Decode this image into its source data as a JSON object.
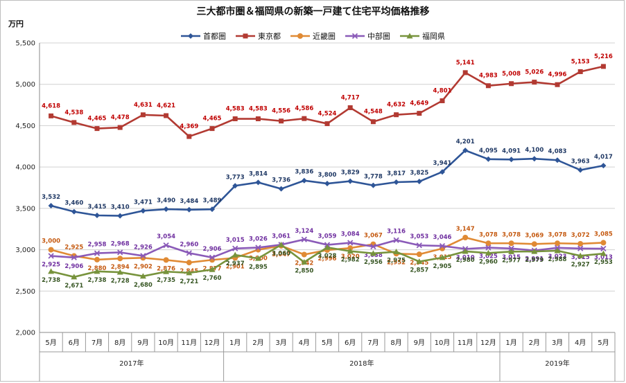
{
  "chart_data": {
    "type": "line",
    "title": "三大都市圏＆福岡県の新築一戸建て住宅平均価格推移",
    "ylabel": "万円",
    "ylim": [
      2000,
      5500
    ],
    "yticks": [
      "2,000",
      "2,500",
      "3,000",
      "3,500",
      "4,000",
      "4,500",
      "5,000",
      "5,500"
    ],
    "categories": [
      "5月",
      "6月",
      "7月",
      "8月",
      "9月",
      "10月",
      "11月",
      "12月",
      "1月",
      "2月",
      "3月",
      "4月",
      "5月",
      "6月",
      "7月",
      "8月",
      "9月",
      "10月",
      "11月",
      "12月",
      "1月",
      "2月",
      "3月",
      "4月",
      "5月"
    ],
    "years": [
      {
        "label": "2017年",
        "from": 0,
        "to": 7
      },
      {
        "label": "2018年",
        "from": 8,
        "to": 19
      },
      {
        "label": "2019年",
        "from": 20,
        "to": 24
      }
    ],
    "grid": true,
    "legend_position": "top",
    "series": [
      {
        "name": "首都圏",
        "color": "#2e5597",
        "marker": "diamond",
        "label_color": "#1f3864",
        "values": [
          3532,
          3460,
          3415,
          3410,
          3471,
          3490,
          3484,
          3489,
          3773,
          3814,
          3736,
          3836,
          3800,
          3829,
          3778,
          3817,
          3825,
          3941,
          4201,
          4095,
          4091,
          4100,
          4083,
          3963,
          4017
        ],
        "labels": [
          "3,532",
          "3,460",
          "3,415",
          "3,410",
          "3,471",
          "3,490",
          "3,484",
          "3,489",
          "3,773",
          "3,814",
          "3,736",
          "3,836",
          "3,800",
          "3,829",
          "3,778",
          "3,817",
          "3,825",
          "3,941",
          "4,201",
          "4,095",
          "4,091",
          "4,100",
          "4,083",
          "3,963",
          "4,017"
        ]
      },
      {
        "name": "東京都",
        "color": "#b23a32",
        "marker": "square",
        "label_color": "#c00000",
        "values": [
          4618,
          4538,
          4465,
          4478,
          4631,
          4621,
          4369,
          4465,
          4583,
          4583,
          4556,
          4586,
          4524,
          4717,
          4548,
          4632,
          4649,
          4801,
          5141,
          4983,
          5008,
          5026,
          4996,
          5153,
          5216
        ],
        "labels": [
          "4,618",
          "4,538",
          "4,465",
          "4,478",
          "4,631",
          "4,621",
          "4,369",
          "4,465",
          "4,583",
          "4,583",
          "4,556",
          "4,586",
          "4,524",
          "4,717",
          "4,548",
          "4,632",
          "4,649",
          "4,801",
          "5,141",
          "4,983",
          "5,008",
          "5,026",
          "4,996",
          "5,153",
          "5,216"
        ]
      },
      {
        "name": "近畿圏",
        "color": "#e08a34",
        "marker": "circle",
        "label_color": "#c55a11",
        "values": [
          3000,
          2925,
          2880,
          2894,
          2902,
          2876,
          2845,
          2877,
          2901,
          3000,
          3047,
          2942,
          2996,
          3020,
          3067,
          2952,
          2945,
          3015,
          3147,
          3078,
          3078,
          3069,
          3078,
          3072,
          3085
        ],
        "labels": [
          "3,000",
          "2,925",
          "2,880",
          "2,894",
          "2,902",
          "2,876",
          "2,845",
          "2,877",
          "2,901",
          "3,000",
          "3,047",
          "2,942",
          "2,996",
          "3,020",
          "3,067",
          "2,952",
          "2,945",
          "3,015",
          "3,147",
          "3,078",
          "3,078",
          "3,069",
          "3,078",
          "3,072",
          "3,085"
        ]
      },
      {
        "name": "中部圏",
        "color": "#8a5ab8",
        "marker": "x",
        "label_color": "#7030a0",
        "values": [
          2925,
          2906,
          2958,
          2968,
          2926,
          3054,
          2960,
          2906,
          3015,
          3026,
          3061,
          3124,
          3059,
          3084,
          3038,
          3116,
          3053,
          3046,
          3010,
          3025,
          3015,
          2991,
          3023,
          3015,
          3013
        ],
        "labels": [
          "2,925",
          "2,906",
          "2,958",
          "2,968",
          "2,926",
          "3,054",
          "2,960",
          "2,906",
          "3,015",
          "3,026",
          "3,061",
          "3,124",
          "3,059",
          "3,084",
          "3,038",
          "3,116",
          "3,053",
          "3,046",
          "3,010",
          "3,025",
          "3,015",
          "2,991",
          "3,023",
          "3,015",
          "3,013"
        ]
      },
      {
        "name": "福岡県",
        "color": "#77933c",
        "marker": "triangle",
        "label_color": "#375623",
        "values": [
          2738,
          2671,
          2738,
          2728,
          2680,
          2735,
          2721,
          2760,
          2937,
          2895,
          3060,
          2850,
          3028,
          2982,
          2956,
          2975,
          2857,
          2905,
          2980,
          2960,
          2977,
          2979,
          2988,
          2927,
          2953
        ],
        "labels": [
          "2,738",
          "2,671",
          "2,738",
          "2,728",
          "2,680",
          "2,735",
          "2,721",
          "2,760",
          "2,937",
          "2,895",
          "3,060",
          "2,850",
          "3,028",
          "2,982",
          "2,956",
          "2,975",
          "2,857",
          "2,905",
          "2,980",
          "2,960",
          "2,977",
          "2,979",
          "2,988",
          "2,927",
          "2,953"
        ]
      }
    ]
  }
}
